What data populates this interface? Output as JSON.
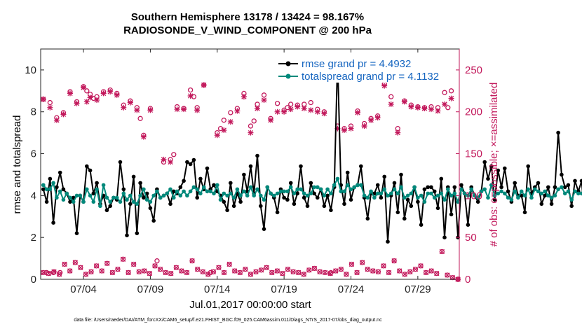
{
  "chart_data": {
    "type": "line",
    "title": "Southern Hemisphere 13178 / 13424 = 98.167%",
    "subtitle": "RADIOSONDE_V_WIND_COMPONENT @ 200 hPa",
    "xlabel": "Jul.01,2017 00:00:00 start",
    "ylabel": "rmse and totalspread",
    "y2label": "# of obs: o=possible; ×=assimilated",
    "footnote": "data file: /Users/raeder/DAI/ATM_forcXX/CAM6_setup/f.e21.FHIST_BGC.f09_025.CAM6assim.011/Diags_NTrS_2017-07/obs_diag_output.nc",
    "xlim": [
      0.8,
      32.1
    ],
    "ylim": [
      0,
      11
    ],
    "y2lim": [
      0,
      275
    ],
    "x_ticks": [
      {
        "value": 4,
        "label": "07/04"
      },
      {
        "value": 9,
        "label": "07/09"
      },
      {
        "value": 14,
        "label": "07/14"
      },
      {
        "value": 19,
        "label": "07/19"
      },
      {
        "value": 24,
        "label": "07/24"
      },
      {
        "value": 29,
        "label": "07/29"
      }
    ],
    "y_ticks": [
      0,
      2,
      4,
      6,
      8,
      10
    ],
    "y2_ticks": [
      0,
      50,
      100,
      150,
      200,
      250
    ],
    "x_start": 1.0,
    "x_step": 0.25,
    "series": [
      {
        "name": "rmse grand pr = 4.4932",
        "axis": "left",
        "color": "#000000",
        "values": [
          4.3,
          3.7,
          4.8,
          2.7,
          4.4,
          5.1,
          4.3,
          4.1,
          3.7,
          3.9,
          2.2,
          4.0,
          3.7,
          5.4,
          5.2,
          4.1,
          4.6,
          3.6,
          4.0,
          3.3,
          3.5,
          3.9,
          3.8,
          5.6,
          4.3,
          2.1,
          3.6,
          4.9,
          2.2,
          4.6,
          3.9,
          4.1,
          3.4,
          2.8,
          4.3,
          3.9,
          4.0,
          4.1,
          3.6,
          4.2,
          4.1,
          4.4,
          4.7,
          5.6,
          5.5,
          5.7,
          3.9,
          4.8,
          4.3,
          5.3,
          4.3,
          4.5,
          4.2,
          4.0,
          3.7,
          3.3,
          4.6,
          3.5,
          4.1,
          3.7,
          5.0,
          4.2,
          5.4,
          4.1,
          5.9,
          3.5,
          2.4,
          4.4,
          4.1,
          3.9,
          3.2,
          4.3,
          3.9,
          3.8,
          4.6,
          3.6,
          4.1,
          5.4,
          3.9,
          3.5,
          4.6,
          4.1,
          3.9,
          4.3,
          3.5,
          4.0,
          3.3,
          4.4,
          10.5,
          4.5,
          3.6,
          5.1,
          3.8,
          4.4,
          4.5,
          5.4,
          3.9,
          2.9,
          4.1,
          4.1,
          4.5,
          3.9,
          4.9,
          1.8,
          4.0,
          4.6,
          3.2,
          5.0,
          2.9,
          3.8,
          3.5,
          4.4,
          3.7,
          2.6,
          4.3,
          4.4,
          4.4,
          4.2,
          3.4,
          4.8,
          2.0,
          4.4,
          3.1,
          4.4,
          2.0,
          4.5,
          4.1,
          2.6,
          4.4,
          4.0,
          3.7,
          4.2,
          5.6,
          4.8,
          5.4,
          3.8,
          5.2,
          4.4,
          5.3,
          4.2,
          3.7,
          4.6,
          4.0,
          4.0,
          3.2,
          5.4,
          4.1,
          4.4,
          4.6,
          3.6,
          4.0,
          4.4,
          3.6,
          4.4,
          7.0,
          5.0,
          4.4,
          4.5,
          3.5,
          4.7,
          4.2,
          4.7,
          2.7
        ],
        "marker": "circle"
      },
      {
        "name": "totalspread grand pr = 4.1132",
        "axis": "left",
        "color": "#00897b",
        "values": [
          4.5,
          4.3,
          4.3,
          4.6,
          3.9,
          4.2,
          3.8,
          4.1,
          3.9,
          3.7,
          4.0,
          4.0,
          3.7,
          4.3,
          4.0,
          3.7,
          4.3,
          3.5,
          4.5,
          3.9,
          3.7,
          3.9,
          3.9,
          3.7,
          4.1,
          3.8,
          4.0,
          3.7,
          3.6,
          4.0,
          4.3,
          3.8,
          3.7,
          4.0,
          4.2,
          3.9,
          4.0,
          4.1,
          4.3,
          3.9,
          4.2,
          4.0,
          4.2,
          4.0,
          4.2,
          4.4,
          4.3,
          4.1,
          4.4,
          4.2,
          4.2,
          4.1,
          4.5,
          3.8,
          4.1,
          4.0,
          4.1,
          3.9,
          4.3,
          4.0,
          4.2,
          4.0,
          4.4,
          4.0,
          4.3,
          4.0,
          3.8,
          4.4,
          4.1,
          4.0,
          4.1,
          4.2,
          4.2,
          4.2,
          4.4,
          4.1,
          4.3,
          4.3,
          4.1,
          4.0,
          4.1,
          4.4,
          4.4,
          4.3,
          4.0,
          4.3,
          4.1,
          4.5,
          4.8,
          4.2,
          4.2,
          4.5,
          4.3,
          4.4,
          4.5,
          4.5,
          4.0,
          3.9,
          4.2,
          3.9,
          4.1,
          4.1,
          4.3,
          4.0,
          4.1,
          4.3,
          4.1,
          4.4,
          3.9,
          4.0,
          4.1,
          4.4,
          3.9,
          4.0,
          3.7,
          4.1,
          4.1,
          3.9,
          4.0,
          4.1,
          3.8,
          4.3,
          4.0,
          4.1,
          3.7,
          4.3,
          4.1,
          4.0,
          4.3,
          4.0,
          3.9,
          4.2,
          4.3,
          3.9,
          4.5,
          4.0,
          4.1,
          4.2,
          4.1,
          3.9,
          3.8,
          4.2,
          3.9,
          4.2,
          4.0,
          4.3,
          3.9,
          4.3,
          4.2,
          4.1,
          4.2,
          4.0,
          3.9,
          4.0,
          4.3,
          4.4,
          4.1,
          4.2,
          3.8,
          4.2,
          4.1,
          4.1,
          4.1
        ],
        "marker": "circle"
      }
    ],
    "obs_markers": {
      "axis": "right",
      "color": "#c2185b",
      "series": [
        {
          "name": "possible",
          "marker": "o",
          "points": [
            [
              1.0,
              215
            ],
            [
              1.25,
              8
            ],
            [
              1.5,
              211
            ],
            [
              1.75,
              8
            ],
            [
              2.0,
              193
            ],
            [
              2.25,
              8
            ],
            [
              2.5,
              199
            ],
            [
              3.0,
              224
            ],
            [
              3.5,
              212
            ],
            [
              4.0,
              230
            ],
            [
              4.25,
              225
            ],
            [
              4.5,
              221
            ],
            [
              4.75,
              216
            ],
            [
              5.0,
              218
            ],
            [
              5.5,
              224
            ],
            [
              6.0,
              226
            ],
            [
              6.5,
              222
            ],
            [
              7.0,
              208
            ],
            [
              7.5,
              213
            ],
            [
              8.0,
              205
            ],
            [
              8.25,
              192
            ],
            [
              8.5,
              172
            ],
            [
              9.0,
              204
            ],
            [
              9.5,
              22
            ],
            [
              10.0,
              140
            ],
            [
              10.5,
              143
            ],
            [
              10.75,
              149
            ],
            [
              11.0,
              206
            ],
            [
              11.5,
              204
            ],
            [
              12.0,
              226
            ],
            [
              12.25,
              218
            ],
            [
              12.5,
              205
            ],
            [
              13.0,
              232
            ],
            [
              13.5,
              8
            ],
            [
              14.0,
              175
            ],
            [
              14.25,
              180
            ],
            [
              14.5,
              190
            ],
            [
              15.0,
              199
            ],
            [
              15.5,
              204
            ],
            [
              16.0,
              222
            ],
            [
              16.5,
              183
            ],
            [
              16.75,
              189
            ],
            [
              17.0,
              209
            ],
            [
              17.5,
              220
            ],
            [
              18.0,
              192
            ],
            [
              18.5,
              210
            ],
            [
              19.0,
              202
            ],
            [
              19.25,
              205
            ],
            [
              19.5,
              209
            ],
            [
              20.0,
              208
            ],
            [
              20.5,
              209
            ],
            [
              21.0,
              211
            ],
            [
              21.5,
              203
            ],
            [
              22.0,
              200
            ],
            [
              22.5,
              8
            ],
            [
              23.0,
              183
            ],
            [
              23.5,
              180
            ],
            [
              24.0,
              183
            ],
            [
              24.5,
              201
            ],
            [
              25.0,
              186
            ],
            [
              25.5,
              192
            ],
            [
              26.0,
              195
            ],
            [
              26.5,
              233
            ],
            [
              27.0,
              218
            ],
            [
              27.5,
              180
            ],
            [
              28.0,
              213
            ],
            [
              28.5,
              208
            ],
            [
              29.0,
              206
            ],
            [
              29.5,
              205
            ],
            [
              30.0,
              206
            ],
            [
              30.5,
              205
            ],
            [
              31.0,
              223
            ],
            [
              31.25,
              205
            ],
            [
              31.5,
              225
            ],
            [
              32.0,
              0
            ]
          ]
        },
        {
          "name": "assimilated",
          "marker": "x",
          "points": [
            [
              1.0,
              215
            ],
            [
              1.5,
              205
            ],
            [
              2.0,
              190
            ],
            [
              2.5,
              197
            ],
            [
              3.0,
              222
            ],
            [
              3.5,
              210
            ],
            [
              4.0,
              229
            ],
            [
              4.25,
              212
            ],
            [
              4.5,
              217
            ],
            [
              5.0,
              214
            ],
            [
              5.5,
              222
            ],
            [
              6.0,
              224
            ],
            [
              6.5,
              220
            ],
            [
              7.0,
              205
            ],
            [
              7.5,
              211
            ],
            [
              8.0,
              202
            ],
            [
              8.5,
              170
            ],
            [
              9.0,
              202
            ],
            [
              10.0,
              143
            ],
            [
              10.5,
              140
            ],
            [
              11.0,
              203
            ],
            [
              11.5,
              203
            ],
            [
              12.0,
              219
            ],
            [
              12.5,
              202
            ],
            [
              13.0,
              232
            ],
            [
              14.0,
              172
            ],
            [
              14.5,
              178
            ],
            [
              15.0,
              188
            ],
            [
              15.5,
              201
            ],
            [
              16.0,
              218
            ],
            [
              16.5,
              175
            ],
            [
              17.0,
              204
            ],
            [
              17.5,
              214
            ],
            [
              18.0,
              190
            ],
            [
              18.5,
              200
            ],
            [
              19.0,
              200
            ],
            [
              19.5,
              203
            ],
            [
              20.0,
              206
            ],
            [
              20.5,
              204
            ],
            [
              21.0,
              202
            ],
            [
              21.5,
              200
            ],
            [
              22.0,
              198
            ],
            [
              23.0,
              180
            ],
            [
              23.5,
              178
            ],
            [
              24.0,
              180
            ],
            [
              24.5,
              199
            ],
            [
              25.0,
              183
            ],
            [
              25.5,
              190
            ],
            [
              26.0,
              193
            ],
            [
              26.5,
              231
            ],
            [
              27.0,
              209
            ],
            [
              27.5,
              175
            ],
            [
              28.0,
              212
            ],
            [
              28.5,
              206
            ],
            [
              29.0,
              205
            ],
            [
              29.5,
              204
            ],
            [
              30.0,
              203
            ],
            [
              30.5,
              201
            ],
            [
              31.0,
              209
            ],
            [
              31.5,
              216
            ],
            [
              32.0,
              0
            ]
          ]
        }
      ],
      "low_values": [
        8,
        7,
        9,
        6,
        18,
        10,
        20,
        14,
        6,
        9,
        16,
        10,
        19,
        8,
        12,
        24,
        8,
        18,
        9,
        10,
        7,
        16,
        12,
        8,
        7,
        14,
        10,
        8,
        22,
        12,
        9,
        6,
        9,
        14,
        8,
        18,
        10,
        8,
        12,
        6,
        9,
        11,
        14,
        8,
        10,
        7,
        12,
        9,
        8,
        6,
        11,
        13,
        9,
        8,
        7,
        10,
        12,
        6,
        18,
        8,
        20,
        12,
        10,
        9,
        16,
        8,
        22,
        10,
        6,
        9,
        12,
        16,
        8,
        10,
        7,
        33,
        5,
        2,
        0
      ]
    }
  }
}
